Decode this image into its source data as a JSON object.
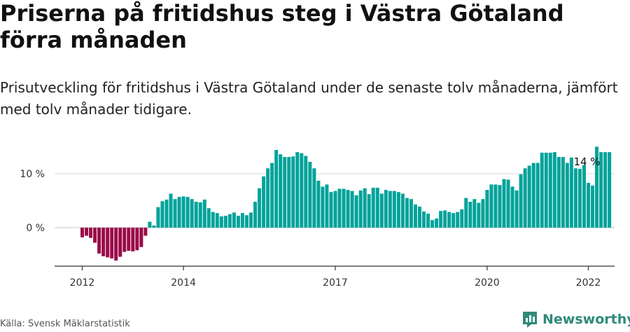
{
  "title": "Priserna på fritidshus steg i Västra Götaland förra månaden",
  "subtitle": "Prisutveckling för fritidshus i Västra Götaland under de senaste tolv månaderna, jämfört med tolv månader tidigare.",
  "source": "Källa: Svensk Mäklarstatistik",
  "brand": {
    "name": "Newsworthy",
    "icon": "newsworthy-logo-icon"
  },
  "colors": {
    "positive": "#00a39a",
    "negative": "#9b0a4a",
    "grid": "#d9d9d9",
    "axis": "#333333"
  },
  "chart_data": {
    "type": "bar",
    "start": "2012-01",
    "ylim": [
      -7,
      15
    ],
    "yticks": [
      {
        "value": 0,
        "label": "0 %"
      },
      {
        "value": 10,
        "label": "10 %"
      }
    ],
    "xticks": [
      {
        "index": 0,
        "label": "2012"
      },
      {
        "index": 24,
        "label": "2014"
      },
      {
        "index": 60,
        "label": "2017"
      },
      {
        "index": 96,
        "label": "2020"
      },
      {
        "index": 120,
        "label": "2022"
      }
    ],
    "annotation": {
      "index": 120,
      "label": "14 %"
    },
    "grid": true,
    "values": [
      -1.8,
      -1.5,
      -1.9,
      -2.8,
      -4.8,
      -5.3,
      -5.5,
      -5.7,
      -6.1,
      -5.4,
      -4.5,
      -4.3,
      -4.4,
      -4.2,
      -3.6,
      -1.5,
      1.1,
      0.4,
      3.8,
      4.9,
      5.2,
      6.3,
      5.3,
      5.7,
      5.8,
      5.7,
      5.3,
      4.8,
      4.7,
      5.2,
      3.6,
      2.9,
      2.7,
      2.1,
      2.2,
      2.5,
      2.8,
      2.2,
      2.7,
      2.3,
      2.8,
      4.8,
      7.3,
      9.5,
      11.0,
      12.0,
      14.4,
      13.6,
      13.1,
      13.1,
      13.2,
      14.0,
      13.8,
      13.3,
      12.2,
      11.0,
      8.7,
      7.6,
      8.0,
      6.6,
      6.8,
      7.2,
      7.2,
      7.0,
      6.8,
      6.0,
      6.9,
      7.3,
      6.2,
      7.4,
      7.4,
      6.3,
      7.0,
      6.8,
      6.8,
      6.6,
      6.3,
      5.5,
      5.3,
      4.3,
      3.9,
      3.0,
      2.6,
      1.4,
      1.7,
      3.1,
      3.2,
      2.9,
      2.7,
      2.9,
      3.4,
      5.5,
      4.8,
      5.3,
      4.6,
      5.3,
      7.0,
      8.0,
      8.0,
      7.9,
      9.0,
      8.9,
      7.6,
      6.9,
      9.9,
      11.0,
      11.5,
      12.0,
      12.0,
      13.9,
      13.9,
      13.9,
      14.0,
      13.1,
      13.1,
      12.0,
      13.0,
      11.0,
      10.9,
      11.6,
      8.3,
      7.8,
      15.0,
      14.0,
      14.0,
      14.0
    ]
  }
}
